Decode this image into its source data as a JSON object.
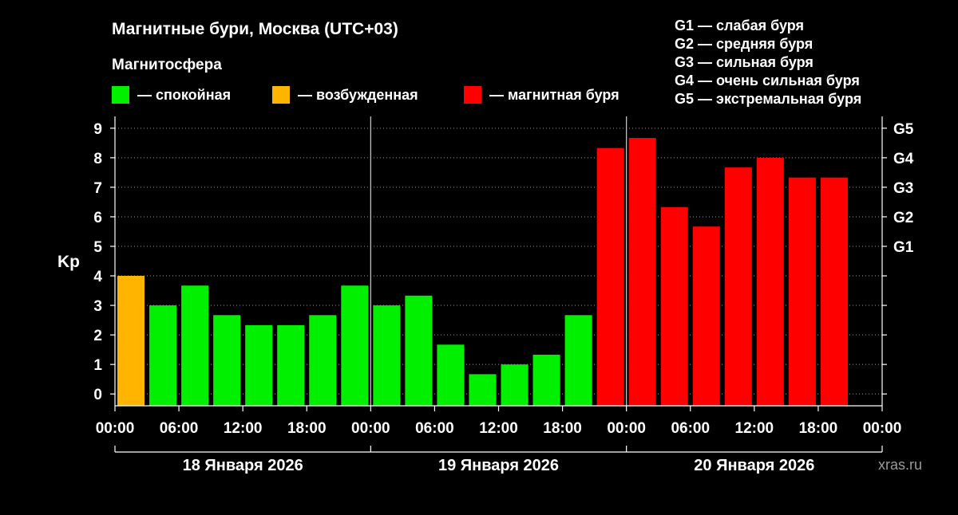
{
  "title": "Магнитные бури, Москва (UTC+03)",
  "legend": {
    "heading": "Магнитосфера",
    "items": [
      {
        "label": "— спокойная",
        "color": "#00f000"
      },
      {
        "label": "— возбужденная",
        "color": "#ffb400"
      },
      {
        "label": "— магнитная буря",
        "color": "#ff0000"
      }
    ]
  },
  "storm_levels": [
    {
      "label": "G1 — слабая буря"
    },
    {
      "label": "G2 — средняя буря"
    },
    {
      "label": "G3 — сильная буря"
    },
    {
      "label": "G4 — очень сильная буря"
    },
    {
      "label": "G5 — экстремальная буря"
    }
  ],
  "watermark": "xras.ru",
  "chart_data": {
    "type": "bar",
    "ylabel": "Kp",
    "ylim": [
      -0.4,
      9.4
    ],
    "yticks": [
      "0",
      "1",
      "2",
      "3",
      "4",
      "5",
      "6",
      "7",
      "8",
      "9"
    ],
    "right_ticks": [
      {
        "value": 5,
        "label": "G1"
      },
      {
        "value": 6,
        "label": "G2"
      },
      {
        "value": 7,
        "label": "G3"
      },
      {
        "value": 8,
        "label": "G4"
      },
      {
        "value": 9,
        "label": "G5"
      }
    ],
    "xtick_labels": [
      "00:00",
      "06:00",
      "12:00",
      "18:00",
      "00:00",
      "06:00",
      "12:00",
      "18:00",
      "00:00",
      "06:00",
      "12:00",
      "18:00",
      "00:00"
    ],
    "days": [
      "18 Января 2026",
      "19 Января 2026",
      "20 Января 2026"
    ],
    "interval_hours": 3,
    "grid": "dotted horizontal",
    "values": [
      4.0,
      3.0,
      3.67,
      2.67,
      2.33,
      2.33,
      2.67,
      3.67,
      3.0,
      3.33,
      1.67,
      0.67,
      1.0,
      1.33,
      2.67,
      8.33,
      8.67,
      6.33,
      5.67,
      7.67,
      8.0,
      7.33,
      7.33
    ],
    "colors": {
      "quiet": "#00f000",
      "active": "#ffb400",
      "storm": "#ff0000"
    }
  }
}
